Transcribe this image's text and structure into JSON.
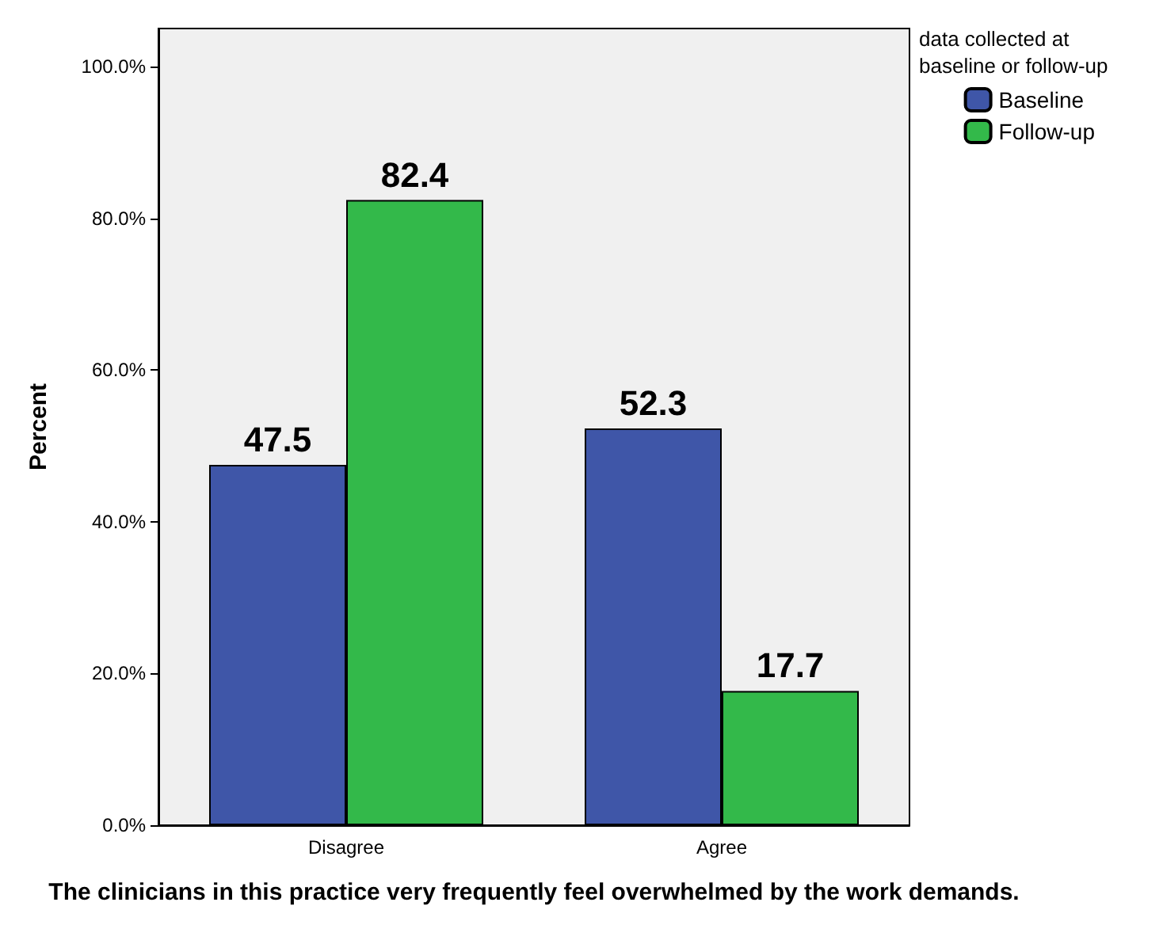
{
  "chart_data": {
    "type": "bar",
    "xlabel": "The clinicians in this practice very frequently feel overwhelmed by the work demands.",
    "ylabel": "Percent",
    "legend_title": "data collected at baseline or follow-up",
    "categories": [
      "Disagree",
      "Agree"
    ],
    "series": [
      {
        "name": "Baseline",
        "color": "#3f56a8",
        "values": [
          47.5,
          52.3
        ]
      },
      {
        "name": "Follow-up",
        "color": "#33b94a",
        "values": [
          82.4,
          17.7
        ]
      }
    ],
    "ylim": [
      0,
      105
    ],
    "yticks": [
      {
        "value": 0,
        "label": "0.0%"
      },
      {
        "value": 20,
        "label": "20.0%"
      },
      {
        "value": 40,
        "label": "40.0%"
      },
      {
        "value": 60,
        "label": "60.0%"
      },
      {
        "value": 80,
        "label": "80.0%"
      },
      {
        "value": 100,
        "label": "100.0%"
      }
    ],
    "data_labels": true,
    "grid": false,
    "legend": "top right"
  }
}
